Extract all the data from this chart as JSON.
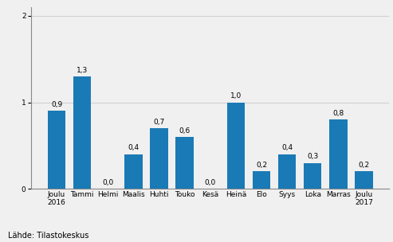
{
  "categories": [
    "Joulu\n2016",
    "Tammi",
    "Helmi",
    "Maalis",
    "Huhti",
    "Touko",
    "Kesä",
    "Heinä",
    "Elo",
    "Syys",
    "Loka",
    "Marras",
    "Joulu\n2017"
  ],
  "values": [
    0.9,
    1.3,
    0.0,
    0.4,
    0.7,
    0.6,
    0.0,
    1.0,
    0.2,
    0.4,
    0.3,
    0.8,
    0.2
  ],
  "bar_color": "#1a7ab5",
  "ylim": [
    0,
    2.1
  ],
  "yticks": [
    0,
    1,
    2
  ],
  "source_text": "Lähde: Tilastokeskus",
  "value_labels": [
    "0,9",
    "1,3",
    "0,0",
    "0,4",
    "0,7",
    "0,6",
    "0,0",
    "1,0",
    "0,2",
    "0,4",
    "0,3",
    "0,8",
    "0,2"
  ],
  "background_color": "#f0f0f0",
  "grid_color": "#d0d0d0",
  "label_fontsize": 6.5,
  "source_fontsize": 7.0,
  "tick_fontsize": 6.5,
  "bar_width": 0.7
}
